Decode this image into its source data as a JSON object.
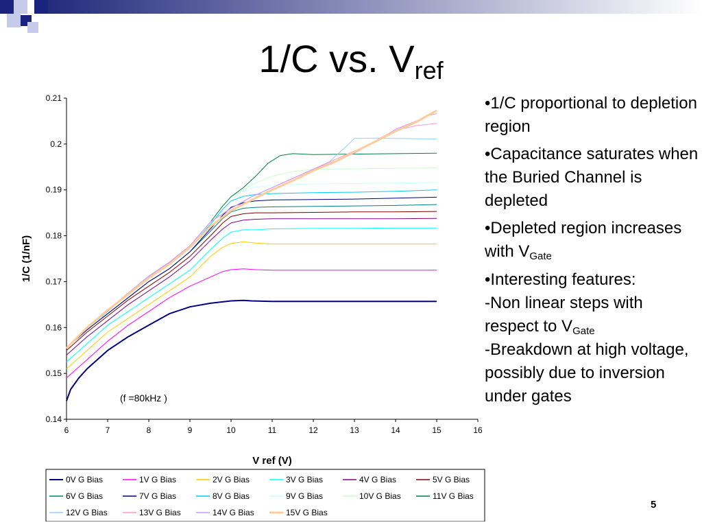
{
  "slide": {
    "title_main": "1/C vs. V",
    "title_sub": "ref",
    "number": "5"
  },
  "theme": {
    "square_dark": "#1a237e",
    "square_light": "#c5cae9",
    "bar_start": "#232b7c",
    "bar_end": "#ffffff"
  },
  "bullets": {
    "b1": "•1/C proportional to depletion region",
    "b2": "•Capacitance saturates when the Buried Channel is depleted",
    "b3_text": "•Depleted region increases with V",
    "b3_sub": "Gate",
    "b4": "•Interesting features:",
    "b5_text": "-Non linear steps  with respect to V",
    "b5_sub": "Gate",
    "b6": "-Breakdown at high voltage, possibly due to inversion under gates"
  },
  "chart_data": {
    "type": "line",
    "xlabel": "V ref (V)",
    "ylabel": "1/C (1/nF)",
    "annotation": "(f =80kHz )",
    "xlim": [
      6,
      16
    ],
    "ylim": [
      0.14,
      0.21
    ],
    "xticks": [
      "6",
      "7",
      "8",
      "9",
      "10",
      "11",
      "12",
      "13",
      "14",
      "15",
      "16"
    ],
    "yticks": [
      "0.14",
      "0.15",
      "0.16",
      "0.17",
      "0.18",
      "0.19",
      "0.2",
      "0.21"
    ],
    "grid": false,
    "legend_position": "bottom",
    "series": [
      {
        "name": "0V G Bias",
        "color": "#000080",
        "width": 2,
        "x": [
          6,
          6.1,
          6.3,
          6.5,
          7,
          7.5,
          8,
          8.5,
          9,
          9.5,
          10,
          10.3,
          10.5,
          11,
          12,
          13,
          14,
          15
        ],
        "y": [
          0.144,
          0.1465,
          0.149,
          0.151,
          0.155,
          0.158,
          0.1605,
          0.163,
          0.1645,
          0.1653,
          0.1658,
          0.1659,
          0.1658,
          0.1657,
          0.1657,
          0.1657,
          0.1657,
          0.1657
        ]
      },
      {
        "name": "1V G Bias",
        "color": "#ff00ff",
        "width": 1,
        "x": [
          6,
          6.5,
          7,
          7.5,
          8,
          8.5,
          9,
          9.5,
          9.8,
          10,
          10.3,
          10.6,
          11,
          12,
          13,
          14,
          15
        ],
        "y": [
          0.149,
          0.153,
          0.157,
          0.1605,
          0.1635,
          0.1665,
          0.169,
          0.171,
          0.1722,
          0.1726,
          0.1728,
          0.1726,
          0.1725,
          0.1725,
          0.1725,
          0.1725,
          0.1725
        ]
      },
      {
        "name": "2V G Bias",
        "color": "#ffcc00",
        "width": 1,
        "x": [
          6,
          6.5,
          7,
          7.5,
          8,
          8.5,
          9,
          9.5,
          9.8,
          10,
          10.3,
          10.6,
          11,
          12,
          13,
          14,
          15
        ],
        "y": [
          0.151,
          0.155,
          0.159,
          0.162,
          0.165,
          0.168,
          0.171,
          0.1755,
          0.1775,
          0.1783,
          0.1787,
          0.1784,
          0.1782,
          0.1782,
          0.1782,
          0.1782,
          0.1782
        ]
      },
      {
        "name": "3V G Bias",
        "color": "#00ffff",
        "width": 1,
        "x": [
          6,
          6.5,
          7,
          7.5,
          8,
          8.5,
          9,
          9.5,
          9.8,
          10,
          10.3,
          10.6,
          11,
          12,
          13,
          14,
          15
        ],
        "y": [
          0.1525,
          0.1565,
          0.1605,
          0.1635,
          0.1665,
          0.1695,
          0.1725,
          0.177,
          0.1795,
          0.1808,
          0.1813,
          0.1813,
          0.1815,
          0.1816,
          0.1816,
          0.1817,
          0.1817
        ]
      },
      {
        "name": "4V G Bias",
        "color": "#800080",
        "width": 1,
        "x": [
          6,
          6.5,
          7,
          7.5,
          8,
          8.5,
          9,
          9.5,
          9.8,
          10,
          10.3,
          10.6,
          11,
          12,
          13,
          14,
          15
        ],
        "y": [
          0.154,
          0.158,
          0.1615,
          0.165,
          0.168,
          0.171,
          0.1745,
          0.179,
          0.1815,
          0.1828,
          0.1834,
          0.1836,
          0.1837,
          0.1837,
          0.1837,
          0.1837,
          0.1838
        ]
      },
      {
        "name": "5V G Bias",
        "color": "#800000",
        "width": 1,
        "x": [
          6,
          6.5,
          7,
          7.5,
          8,
          8.5,
          9,
          9.5,
          9.8,
          10,
          10.3,
          10.6,
          11,
          12,
          13,
          14,
          15
        ],
        "y": [
          0.155,
          0.159,
          0.1625,
          0.166,
          0.169,
          0.172,
          0.1755,
          0.18,
          0.1828,
          0.1842,
          0.1848,
          0.185,
          0.185,
          0.1851,
          0.1852,
          0.1852,
          0.1853
        ]
      },
      {
        "name": "6V G Bias",
        "color": "#008080",
        "width": 1,
        "x": [
          6,
          6.5,
          7,
          7.5,
          8,
          8.5,
          9,
          9.5,
          9.8,
          10,
          10.3,
          10.6,
          11,
          12,
          13,
          14,
          15
        ],
        "y": [
          0.1555,
          0.1595,
          0.163,
          0.1665,
          0.17,
          0.1728,
          0.1765,
          0.181,
          0.1838,
          0.1852,
          0.186,
          0.1862,
          0.1863,
          0.1864,
          0.1865,
          0.1866,
          0.1868
        ]
      },
      {
        "name": "7V G Bias",
        "color": "#000080",
        "width": 1,
        "x": [
          6,
          6.5,
          7,
          7.5,
          8,
          8.5,
          9,
          9.5,
          9.8,
          10,
          10.3,
          10.6,
          11,
          12,
          13,
          14,
          15
        ],
        "y": [
          0.1555,
          0.1595,
          0.163,
          0.1665,
          0.17,
          0.1728,
          0.1765,
          0.1815,
          0.1845,
          0.1862,
          0.1872,
          0.1876,
          0.1878,
          0.1879,
          0.188,
          0.1882,
          0.1884
        ]
      },
      {
        "name": "8V G Bias",
        "color": "#00ccff",
        "width": 1,
        "x": [
          6,
          6.5,
          7,
          7.5,
          8,
          8.5,
          9,
          9.5,
          9.8,
          10,
          10.3,
          10.6,
          11,
          12,
          13,
          14,
          15
        ],
        "y": [
          0.1555,
          0.1598,
          0.1635,
          0.1672,
          0.171,
          0.174,
          0.1775,
          0.1825,
          0.1858,
          0.1876,
          0.1886,
          0.189,
          0.1892,
          0.1894,
          0.1895,
          0.1897,
          0.19
        ]
      },
      {
        "name": "9V G Bias",
        "color": "#ccffff",
        "width": 1,
        "x": [
          6,
          6.5,
          7,
          7.5,
          8,
          8.5,
          9,
          9.5,
          9.8,
          10,
          10.3,
          10.6,
          11,
          12,
          13,
          14,
          15
        ],
        "y": [
          0.1555,
          0.16,
          0.1638,
          0.1675,
          0.1712,
          0.1742,
          0.1778,
          0.183,
          0.1865,
          0.1885,
          0.1898,
          0.1906,
          0.191,
          0.1913,
          0.1914,
          0.1915,
          0.1916
        ]
      },
      {
        "name": "10V G Bias",
        "color": "#ccffcc",
        "width": 1,
        "x": [
          6,
          6.5,
          7,
          7.5,
          8,
          8.5,
          9,
          9.5,
          9.8,
          10,
          10.3,
          10.6,
          11,
          11.5,
          12,
          13,
          14,
          15
        ],
        "y": [
          0.1555,
          0.16,
          0.1638,
          0.1675,
          0.1712,
          0.1742,
          0.1778,
          0.183,
          0.1865,
          0.1885,
          0.19,
          0.1915,
          0.193,
          0.194,
          0.1945,
          0.1946,
          0.1947,
          0.1948
        ]
      },
      {
        "name": "11V G Bias",
        "color": "#008040",
        "width": 1,
        "x": [
          6,
          6.5,
          7,
          7.5,
          8,
          8.5,
          9,
          9.5,
          9.8,
          10,
          10.3,
          10.6,
          10.9,
          11.2,
          11.5,
          12,
          13,
          14,
          15
        ],
        "y": [
          0.1555,
          0.16,
          0.1638,
          0.1675,
          0.1712,
          0.1742,
          0.1778,
          0.183,
          0.1865,
          0.1885,
          0.1905,
          0.193,
          0.1958,
          0.1975,
          0.1979,
          0.1977,
          0.1978,
          0.1979,
          0.198
        ]
      },
      {
        "name": "12V G Bias",
        "color": "#99ccff",
        "width": 1,
        "x": [
          6,
          6.5,
          7,
          7.5,
          8,
          8.5,
          9,
          9.5,
          10,
          10.5,
          11,
          11.5,
          12,
          12.4,
          12.8,
          13,
          13.5,
          14,
          15
        ],
        "y": [
          0.1555,
          0.16,
          0.1638,
          0.1675,
          0.1712,
          0.1742,
          0.1778,
          0.183,
          0.186,
          0.1885,
          0.1905,
          0.1925,
          0.1945,
          0.1962,
          0.1995,
          0.2012,
          0.2013,
          0.2012,
          0.2011
        ]
      },
      {
        "name": "13V G Bias",
        "color": "#ff99cc",
        "width": 1,
        "x": [
          6,
          6.5,
          7,
          7.5,
          8,
          8.5,
          9,
          9.5,
          10,
          10.5,
          11,
          11.5,
          12,
          12.5,
          13,
          13.3,
          13.6,
          14,
          14.5,
          15
        ],
        "y": [
          0.1555,
          0.16,
          0.1638,
          0.1675,
          0.1712,
          0.1742,
          0.1778,
          0.183,
          0.186,
          0.1885,
          0.1905,
          0.1925,
          0.1945,
          0.1965,
          0.1985,
          0.1995,
          0.2012,
          0.203,
          0.204,
          0.2045
        ]
      },
      {
        "name": "14V G Bias",
        "color": "#cc99ff",
        "width": 1,
        "x": [
          6,
          6.5,
          7,
          7.5,
          8,
          8.5,
          9,
          9.5,
          10,
          10.5,
          11,
          11.5,
          12,
          12.5,
          13,
          13.5,
          14,
          14.5,
          14.8,
          15
        ],
        "y": [
          0.1555,
          0.16,
          0.1638,
          0.1675,
          0.1712,
          0.1742,
          0.1778,
          0.183,
          0.186,
          0.1885,
          0.1905,
          0.1925,
          0.1945,
          0.1962,
          0.198,
          0.2005,
          0.2032,
          0.205,
          0.2062,
          0.2066
        ]
      },
      {
        "name": "15V G Bias",
        "color": "#ffcc99",
        "width": 3,
        "x": [
          6,
          6.5,
          7,
          7.5,
          8,
          8.5,
          9,
          9.5,
          10,
          10.5,
          11,
          11.5,
          12,
          12.5,
          13,
          13.5,
          14,
          14.5,
          15
        ],
        "y": [
          0.1555,
          0.16,
          0.1638,
          0.1672,
          0.1708,
          0.1738,
          0.1775,
          0.182,
          0.1855,
          0.1878,
          0.19,
          0.192,
          0.1942,
          0.196,
          0.1983,
          0.2005,
          0.2028,
          0.2048,
          0.2073
        ]
      }
    ]
  }
}
